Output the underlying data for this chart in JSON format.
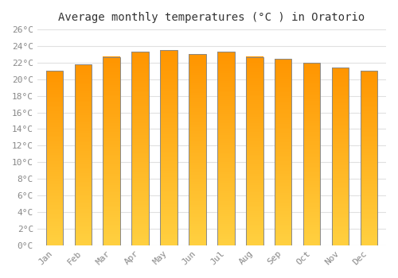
{
  "title": "Average monthly temperatures (°C ) in Oratorio",
  "months": [
    "Jan",
    "Feb",
    "Mar",
    "Apr",
    "May",
    "Jun",
    "Jul",
    "Aug",
    "Sep",
    "Oct",
    "Nov",
    "Dec"
  ],
  "values": [
    21.0,
    21.8,
    22.7,
    23.3,
    23.5,
    23.0,
    23.3,
    22.7,
    22.5,
    22.0,
    21.4,
    21.0
  ],
  "bar_color_top": "#FFA500",
  "bar_color_bottom": "#FFD966",
  "bar_edge_color": "#888888",
  "background_color": "#FFFFFF",
  "plot_bg_color": "#FFFFFF",
  "grid_color": "#E0E0E0",
  "ylim": [
    0,
    26
  ],
  "ytick_step": 2,
  "title_fontsize": 10,
  "tick_fontsize": 8,
  "tick_color": "#888888",
  "bar_width": 0.6,
  "gradient_bottom": "#FFD040",
  "gradient_top": "#FF9500"
}
